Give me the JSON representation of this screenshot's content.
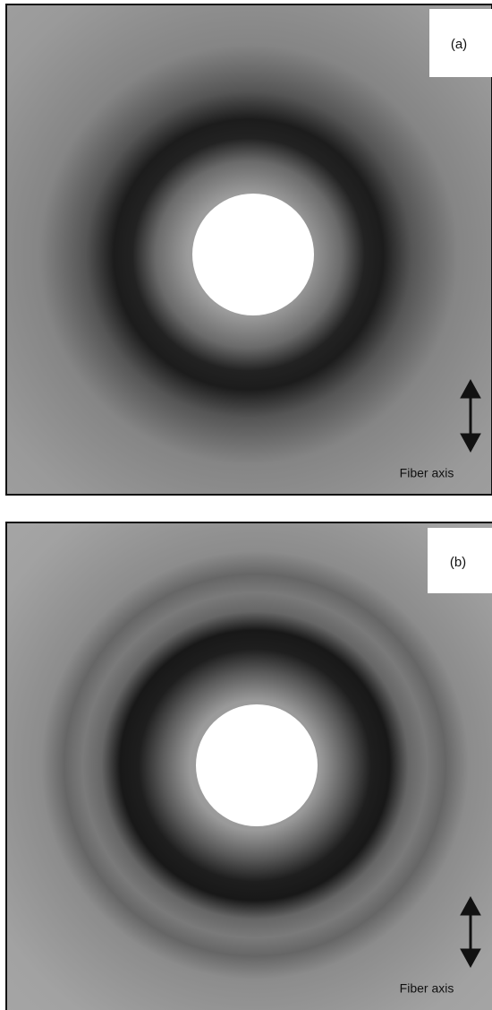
{
  "panels": [
    {
      "label": "(a)",
      "caption": "Fiber axis"
    },
    {
      "label": "(b)",
      "caption": "Fiber axis"
    }
  ]
}
